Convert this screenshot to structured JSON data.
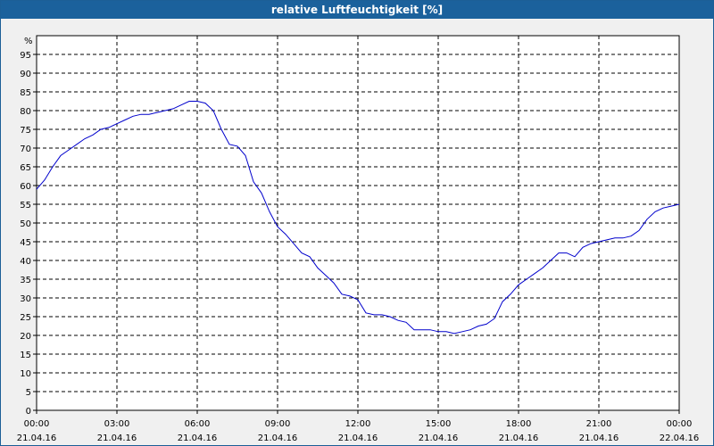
{
  "chart_data": {
    "type": "line",
    "title": "relative Luftfeuchtigkeit [%]",
    "ylabel": "%",
    "ylim": [
      0,
      100
    ],
    "y_ticks": [
      0,
      5,
      10,
      15,
      20,
      25,
      30,
      35,
      40,
      45,
      50,
      55,
      60,
      65,
      70,
      75,
      80,
      85,
      90,
      95
    ],
    "x_range_hours": [
      0,
      24
    ],
    "x_ticks": [
      {
        "time": "00:00",
        "date": "21.04.16"
      },
      {
        "time": "03:00",
        "date": "21.04.16"
      },
      {
        "time": "06:00",
        "date": "21.04.16"
      },
      {
        "time": "09:00",
        "date": "21.04.16"
      },
      {
        "time": "12:00",
        "date": "21.04.16"
      },
      {
        "time": "15:00",
        "date": "21.04.16"
      },
      {
        "time": "18:00",
        "date": "21.04.16"
      },
      {
        "time": "21:00",
        "date": "21.04.16"
      },
      {
        "time": "00:00",
        "date": "22.04.16"
      }
    ],
    "grid": true,
    "series": [
      {
        "color": "#0000cc",
        "x": [
          0,
          0.3,
          0.6,
          0.9,
          1.2,
          1.5,
          1.8,
          2.1,
          2.4,
          2.7,
          3.0,
          3.3,
          3.6,
          3.9,
          4.2,
          4.5,
          4.8,
          5.1,
          5.4,
          5.7,
          6.0,
          6.3,
          6.6,
          6.9,
          7.2,
          7.5,
          7.8,
          8.1,
          8.4,
          8.7,
          9.0,
          9.3,
          9.6,
          9.9,
          10.2,
          10.5,
          10.8,
          11.1,
          11.4,
          11.7,
          12.0,
          12.3,
          12.6,
          12.9,
          13.2,
          13.5,
          13.8,
          14.1,
          14.4,
          14.7,
          15.0,
          15.3,
          15.6,
          15.9,
          16.2,
          16.5,
          16.8,
          17.1,
          17.4,
          17.7,
          18.0,
          18.3,
          18.6,
          18.9,
          19.2,
          19.5,
          19.8,
          20.1,
          20.4,
          20.7,
          21.0,
          21.3,
          21.6,
          21.9,
          22.2,
          22.5,
          22.8,
          23.1,
          23.4,
          23.7,
          24.0
        ],
        "values": [
          59,
          61.5,
          65,
          68,
          69.5,
          71,
          72.5,
          73.5,
          75,
          75.5,
          76.5,
          77.5,
          78.5,
          79,
          79,
          79.5,
          80,
          80.5,
          81.5,
          82.5,
          82.5,
          82,
          80,
          75,
          71,
          70.5,
          68,
          61,
          58,
          53,
          49,
          47,
          44.5,
          42,
          41,
          38,
          36,
          34,
          31,
          30.5,
          29.5,
          26,
          25.5,
          25.5,
          25,
          24,
          23.5,
          21.5,
          21.5,
          21.5,
          21,
          21,
          20.5,
          21,
          21.5,
          22.5,
          23,
          24.5,
          29,
          31,
          33.5,
          35,
          36.5,
          38,
          40,
          42,
          42,
          41,
          43.5,
          44.5,
          45,
          45.5,
          46,
          46,
          46.5,
          48,
          51,
          53,
          54,
          54.5,
          55
        ]
      }
    ]
  }
}
